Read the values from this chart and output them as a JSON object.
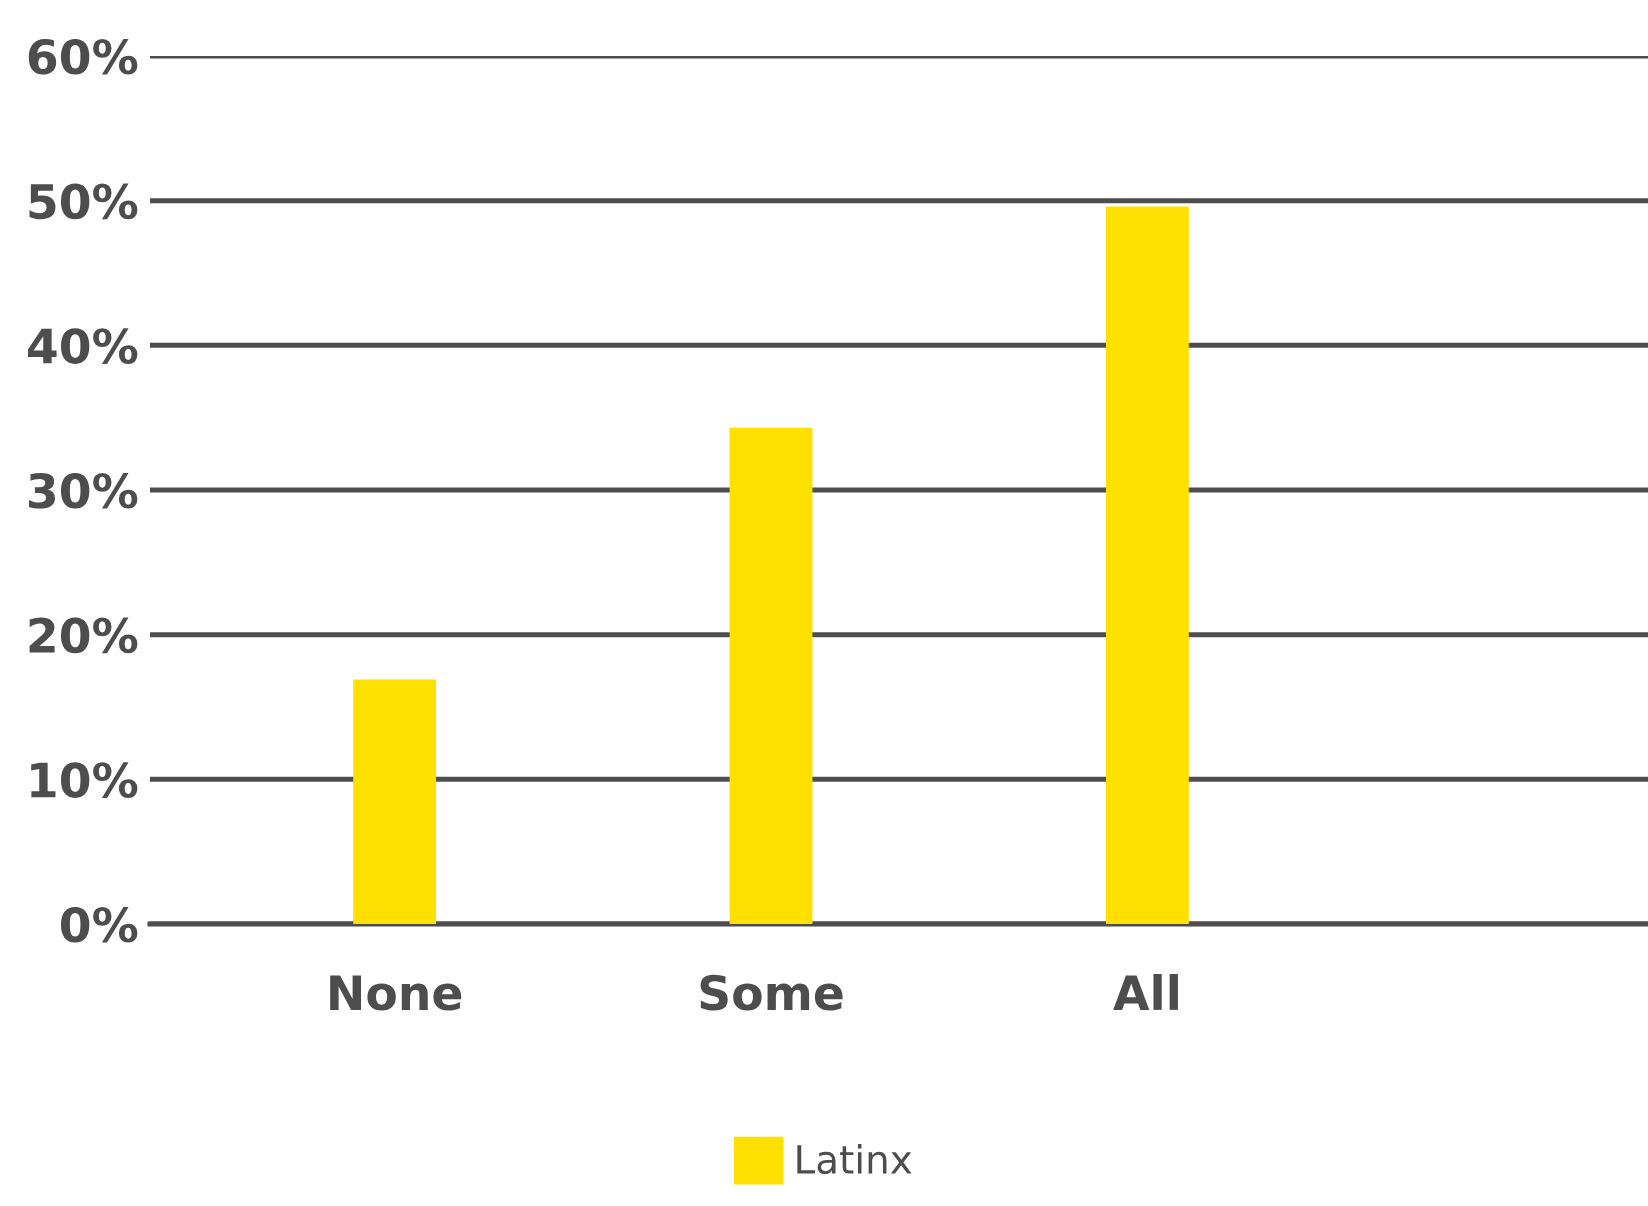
{
  "chart_data": {
    "type": "bar",
    "categories": [
      "None",
      "Some",
      "All"
    ],
    "series": [
      {
        "name": "Latinx",
        "color": "#ffe000",
        "values": [
          16.9,
          34.3,
          49.6
        ]
      }
    ],
    "ylim": [
      0,
      60
    ],
    "yticks": [
      {
        "value": 0,
        "label": "0%"
      },
      {
        "value": 10,
        "label": "10%"
      },
      {
        "value": 20,
        "label": "20%"
      },
      {
        "value": 30,
        "label": "30%"
      },
      {
        "value": 40,
        "label": "40%"
      },
      {
        "value": 50,
        "label": "50%"
      },
      {
        "value": 60,
        "label": "60%"
      }
    ],
    "grid": "y",
    "legend": "bottom"
  }
}
